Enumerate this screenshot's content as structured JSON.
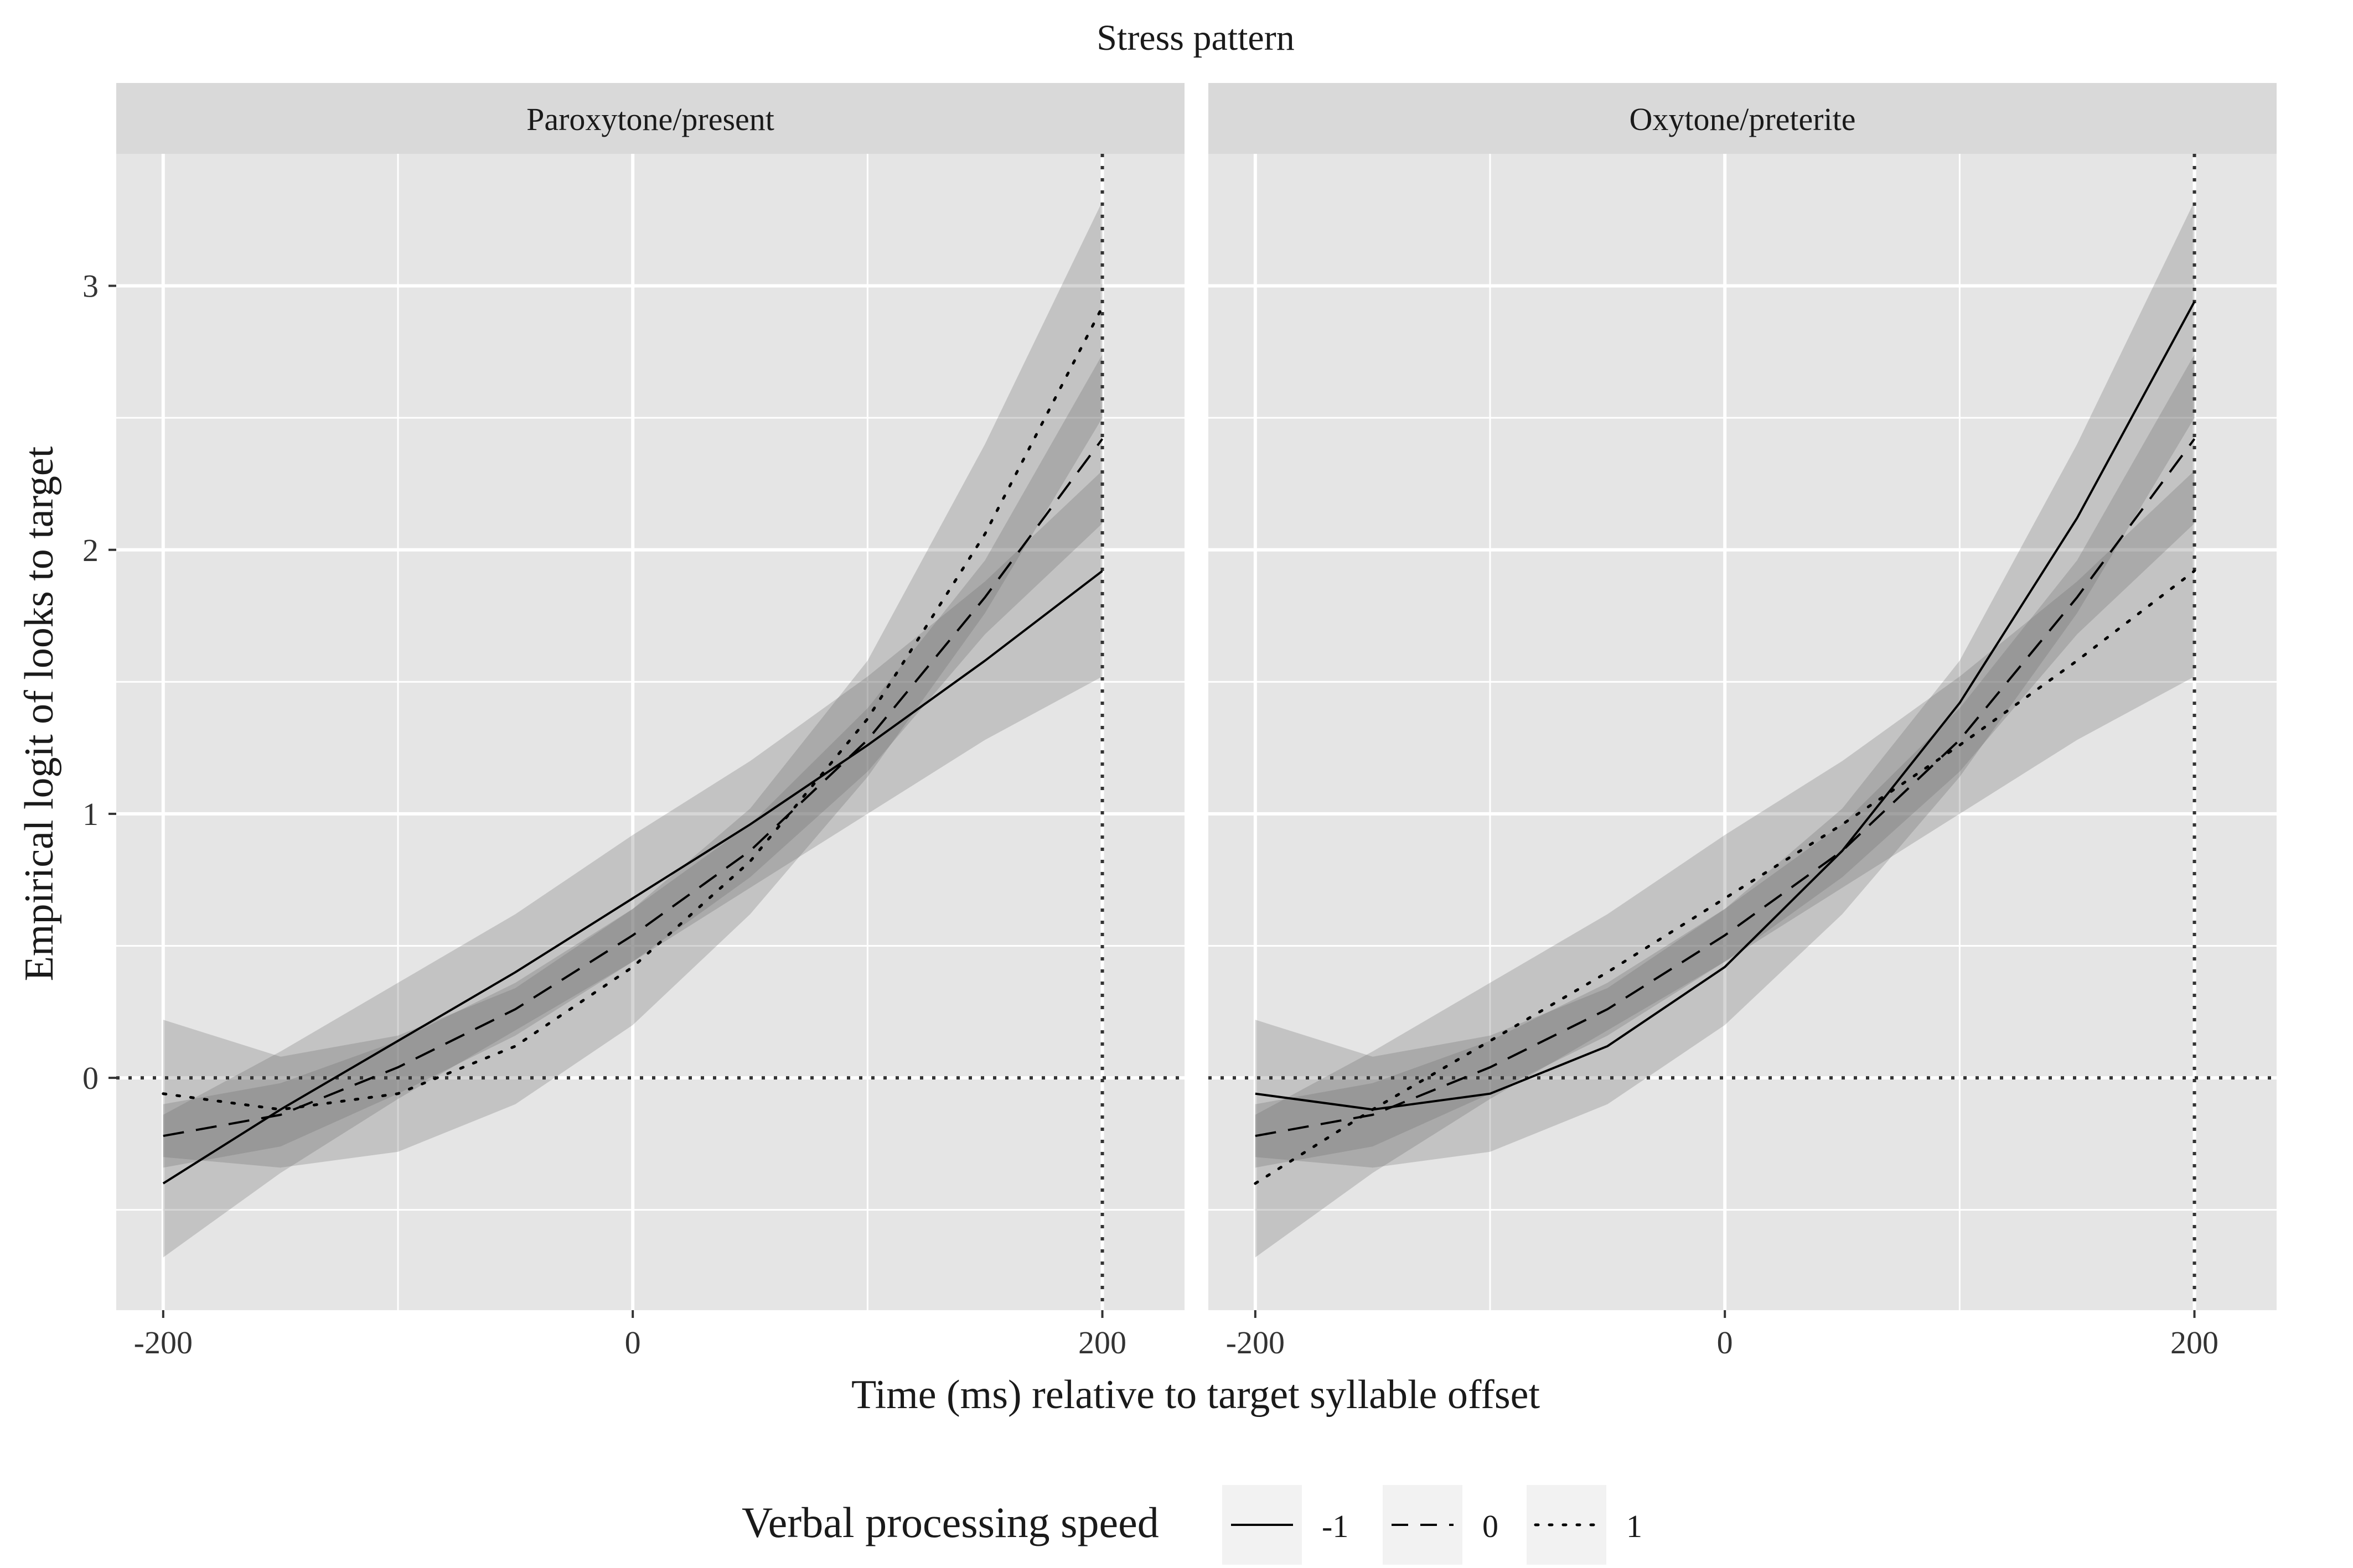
{
  "chart_data": {
    "type": "line",
    "title": "Stress pattern",
    "xlabel": "Time (ms) relative to target syllable offset",
    "ylabel": "Empirical logit of looks to target",
    "xlim": [
      -220,
      235
    ],
    "ylim": [
      -0.88,
      3.5
    ],
    "x_ticks": [
      "-200",
      "0",
      "200"
    ],
    "x_tick_values": [
      -200,
      0,
      200
    ],
    "y_ticks": [
      "0",
      "1",
      "2",
      "3"
    ],
    "y_tick_values": [
      0,
      1,
      2,
      3
    ],
    "grid": true,
    "legend": {
      "title": "Verbal processing speed",
      "placement": "bottom",
      "entries": [
        {
          "label": "-1",
          "dash": "solid"
        },
        {
          "label": "0",
          "dash": "dashed"
        },
        {
          "label": "1",
          "dash": "dotted"
        }
      ]
    },
    "reference_lines": {
      "y": 0,
      "x": 200,
      "style": "dotted"
    },
    "x": [
      -200,
      -150,
      -100,
      -50,
      0,
      50,
      100,
      150,
      200
    ],
    "facets": [
      {
        "strip": "Paroxytone/present",
        "series": [
          {
            "name": "-1",
            "values": [
              -0.4,
              -0.12,
              0.14,
              0.4,
              0.68,
              0.96,
              1.26,
              1.58,
              1.92
            ],
            "lower": [
              -0.68,
              -0.36,
              -0.08,
              0.18,
              0.44,
              0.72,
              1.0,
              1.28,
              1.52
            ],
            "upper": [
              -0.14,
              0.1,
              0.36,
              0.62,
              0.92,
              1.2,
              1.52,
              1.88,
              2.3
            ]
          },
          {
            "name": "0",
            "values": [
              -0.22,
              -0.14,
              0.04,
              0.26,
              0.54,
              0.86,
              1.28,
              1.82,
              2.42
            ],
            "lower": [
              -0.34,
              -0.26,
              -0.06,
              0.16,
              0.44,
              0.76,
              1.16,
              1.68,
              2.1
            ],
            "upper": [
              -0.1,
              -0.02,
              0.14,
              0.36,
              0.64,
              0.96,
              1.4,
              1.96,
              2.74
            ]
          },
          {
            "name": "1",
            "values": [
              -0.06,
              -0.12,
              -0.06,
              0.12,
              0.42,
              0.82,
              1.36,
              2.06,
              2.92
            ],
            "lower": [
              -0.3,
              -0.34,
              -0.28,
              -0.1,
              0.2,
              0.62,
              1.14,
              1.76,
              2.5
            ],
            "upper": [
              0.22,
              0.08,
              0.16,
              0.34,
              0.64,
              1.02,
              1.58,
              2.4,
              3.32
            ]
          }
        ]
      },
      {
        "strip": "Oxytone/preterite",
        "series": [
          {
            "name": "-1",
            "values": [
              -0.06,
              -0.12,
              -0.06,
              0.12,
              0.42,
              0.86,
              1.42,
              2.12,
              2.94
            ],
            "lower": [
              -0.3,
              -0.34,
              -0.28,
              -0.1,
              0.2,
              0.62,
              1.14,
              1.76,
              2.5
            ],
            "upper": [
              0.22,
              0.08,
              0.16,
              0.34,
              0.64,
              1.02,
              1.58,
              2.4,
              3.32
            ]
          },
          {
            "name": "0",
            "values": [
              -0.22,
              -0.14,
              0.04,
              0.26,
              0.54,
              0.86,
              1.28,
              1.82,
              2.42
            ],
            "lower": [
              -0.34,
              -0.26,
              -0.06,
              0.16,
              0.44,
              0.76,
              1.16,
              1.68,
              2.1
            ],
            "upper": [
              -0.1,
              -0.02,
              0.14,
              0.36,
              0.64,
              0.96,
              1.4,
              1.96,
              2.74
            ]
          },
          {
            "name": "1",
            "values": [
              -0.4,
              -0.12,
              0.14,
              0.4,
              0.68,
              0.96,
              1.26,
              1.58,
              1.92
            ],
            "lower": [
              -0.68,
              -0.36,
              -0.08,
              0.18,
              0.44,
              0.72,
              1.0,
              1.28,
              1.52
            ],
            "upper": [
              -0.14,
              0.1,
              0.36,
              0.62,
              0.92,
              1.2,
              1.52,
              1.88,
              2.3
            ]
          }
        ]
      }
    ]
  },
  "colors": {
    "panel_bg": "#e5e5e5",
    "strip_bg": "#d9d9d9",
    "ribbon": "#666666",
    "grid": "#ffffff",
    "line": "#000000",
    "ref_line": "#333333",
    "legend_key_bg": "#f2f2f2"
  }
}
